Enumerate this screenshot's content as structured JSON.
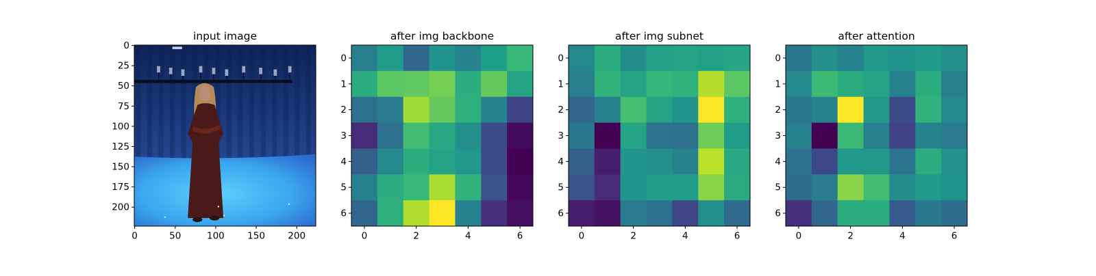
{
  "chart_data": [
    {
      "type": "image",
      "title": "input image",
      "xlabel": "",
      "ylabel": "",
      "x_range": [
        0,
        224
      ],
      "y_range": [
        224,
        0
      ],
      "xticks": [
        0,
        50,
        100,
        150,
        200
      ],
      "yticks": [
        0,
        25,
        50,
        75,
        100,
        125,
        150,
        175,
        200
      ],
      "xtick_labels": [
        "0",
        "50",
        "100",
        "150",
        "200"
      ],
      "ytick_labels": [
        "0",
        "25",
        "50",
        "75",
        "100",
        "125",
        "150",
        "175",
        "200"
      ],
      "content": "photo of a woman in a long dark red dress standing in a blue studio with lights on a rig",
      "colors": {
        "studio_wall": "#1f3f86",
        "studio_floor": "#3aa6ef",
        "dress": "#4a1a1a",
        "skin": "#b98d78",
        "hair": "#b48a5a"
      }
    },
    {
      "type": "heatmap",
      "title": "after img backbone",
      "xlabel": "",
      "ylabel": "",
      "colormap": "viridis",
      "color_range": [
        0,
        1
      ],
      "xticks": [
        0,
        2,
        4,
        6
      ],
      "yticks": [
        0,
        1,
        2,
        3,
        4,
        5,
        6
      ],
      "xtick_labels": [
        "0",
        "2",
        "4",
        "6"
      ],
      "ytick_labels": [
        "0",
        "1",
        "2",
        "3",
        "4",
        "5",
        "6"
      ],
      "values": [
        [
          0.43,
          0.55,
          0.33,
          0.52,
          0.45,
          0.56,
          0.67
        ],
        [
          0.62,
          0.74,
          0.75,
          0.79,
          0.62,
          0.76,
          0.58
        ],
        [
          0.37,
          0.42,
          0.86,
          0.76,
          0.63,
          0.45,
          0.2
        ],
        [
          0.12,
          0.37,
          0.69,
          0.6,
          0.5,
          0.23,
          0.03
        ],
        [
          0.3,
          0.47,
          0.62,
          0.58,
          0.53,
          0.23,
          0.0
        ],
        [
          0.44,
          0.62,
          0.67,
          0.87,
          0.65,
          0.26,
          0.02
        ],
        [
          0.33,
          0.63,
          0.88,
          1.0,
          0.45,
          0.14,
          0.04
        ]
      ]
    },
    {
      "type": "heatmap",
      "title": "after img subnet",
      "xlabel": "",
      "ylabel": "",
      "colormap": "viridis",
      "color_range": [
        0,
        1
      ],
      "xticks": [
        0,
        2,
        4,
        6
      ],
      "yticks": [
        0,
        1,
        2,
        3,
        4,
        5,
        6
      ],
      "xtick_labels": [
        "0",
        "2",
        "4",
        "6"
      ],
      "ytick_labels": [
        "0",
        "1",
        "2",
        "3",
        "4",
        "5",
        "6"
      ],
      "values": [
        [
          0.47,
          0.62,
          0.49,
          0.57,
          0.58,
          0.57,
          0.59
        ],
        [
          0.43,
          0.65,
          0.58,
          0.66,
          0.64,
          0.89,
          0.74
        ],
        [
          0.33,
          0.45,
          0.7,
          0.58,
          0.52,
          1.0,
          0.63
        ],
        [
          0.4,
          0.0,
          0.58,
          0.38,
          0.37,
          0.78,
          0.55
        ],
        [
          0.3,
          0.08,
          0.52,
          0.5,
          0.45,
          0.9,
          0.6
        ],
        [
          0.25,
          0.12,
          0.52,
          0.55,
          0.55,
          0.82,
          0.61
        ],
        [
          0.08,
          0.05,
          0.42,
          0.37,
          0.21,
          0.5,
          0.34
        ]
      ]
    },
    {
      "type": "heatmap",
      "title": "after attention",
      "xlabel": "",
      "ylabel": "",
      "colormap": "viridis",
      "color_range": [
        0,
        1
      ],
      "xticks": [
        0,
        2,
        4,
        6
      ],
      "yticks": [
        0,
        1,
        2,
        3,
        4,
        5,
        6
      ],
      "xtick_labels": [
        "0",
        "2",
        "4",
        "6"
      ],
      "ytick_labels": [
        "0",
        "1",
        "2",
        "3",
        "4",
        "5",
        "6"
      ],
      "values": [
        [
          0.4,
          0.5,
          0.44,
          0.53,
          0.52,
          0.54,
          0.5
        ],
        [
          0.47,
          0.68,
          0.62,
          0.58,
          0.44,
          0.62,
          0.43
        ],
        [
          0.4,
          0.45,
          1.0,
          0.53,
          0.23,
          0.64,
          0.47
        ],
        [
          0.44,
          0.0,
          0.68,
          0.43,
          0.2,
          0.44,
          0.41
        ],
        [
          0.37,
          0.22,
          0.53,
          0.53,
          0.38,
          0.62,
          0.51
        ],
        [
          0.35,
          0.42,
          0.82,
          0.69,
          0.49,
          0.54,
          0.52
        ],
        [
          0.14,
          0.33,
          0.62,
          0.62,
          0.28,
          0.4,
          0.35
        ]
      ]
    }
  ]
}
